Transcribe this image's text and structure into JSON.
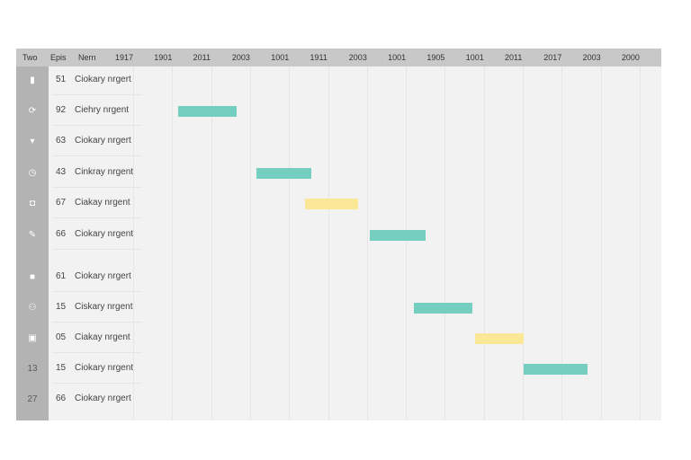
{
  "header": {
    "type_label": "Two",
    "code_label": "Epis",
    "name_label": "Nern",
    "years": [
      "1917",
      "1901",
      "2011",
      "2003",
      "1001",
      "1911",
      "2003",
      "1001",
      "1905",
      "1001",
      "2011",
      "2017",
      "2003",
      "2000"
    ]
  },
  "colors": {
    "teal": "#74cfc0",
    "yellow": "#fbe897",
    "type_column": "#b3b3b3",
    "header": "#c8c8c8"
  },
  "rows": [
    {
      "icon": "file-icon",
      "glyph": "▮",
      "code": "51",
      "name": "Ciokary nrgert",
      "bar": null
    },
    {
      "icon": "refresh-icon",
      "glyph": "⟳",
      "code": "92",
      "name": "Ciehry nrgent",
      "bar": {
        "start_col": 1.35,
        "end_col": 2.85,
        "color": "teal"
      }
    },
    {
      "icon": "filter-icon",
      "glyph": "▾",
      "code": "63",
      "name": "Ciokary nrgert",
      "bar": null
    },
    {
      "icon": "clock-icon",
      "glyph": "◷",
      "code": "43",
      "name": "Cinkray nrgent",
      "bar": {
        "start_col": 3.35,
        "end_col": 4.75,
        "color": "teal"
      }
    },
    {
      "icon": "camera-icon",
      "glyph": "◘",
      "code": "67",
      "name": "Ciakay nrgent",
      "bar": {
        "start_col": 4.6,
        "end_col": 5.95,
        "color": "yellow"
      }
    },
    {
      "icon": "edit-icon",
      "glyph": "✎",
      "code": "66",
      "name": "Ciokary nrgent",
      "bar": {
        "start_col": 6.25,
        "end_col": 7.7,
        "color": "teal"
      }
    },
    {
      "icon": "square-icon",
      "glyph": "■",
      "code": "61",
      "name": "Ciokary nrgert",
      "bar": null
    },
    {
      "icon": "people-icon",
      "glyph": "⚇",
      "code": "15",
      "name": "Ciskary nrgent",
      "bar": {
        "start_col": 7.4,
        "end_col": 8.9,
        "color": "teal"
      }
    },
    {
      "icon": "frame-icon",
      "glyph": "▣",
      "code": "05",
      "name": "Ciakay nrgent",
      "bar": {
        "start_col": 8.95,
        "end_col": 10.2,
        "color": "yellow"
      }
    },
    {
      "icon": "badge-icon",
      "glyph": "13",
      "code": "15",
      "name": "Ciokary nrgent",
      "bar": {
        "start_col": 10.2,
        "end_col": 11.85,
        "color": "teal"
      }
    },
    {
      "icon": "number-icon",
      "glyph": "27",
      "code": "66",
      "name": "Ciokary nrgert",
      "bar": null
    }
  ]
}
